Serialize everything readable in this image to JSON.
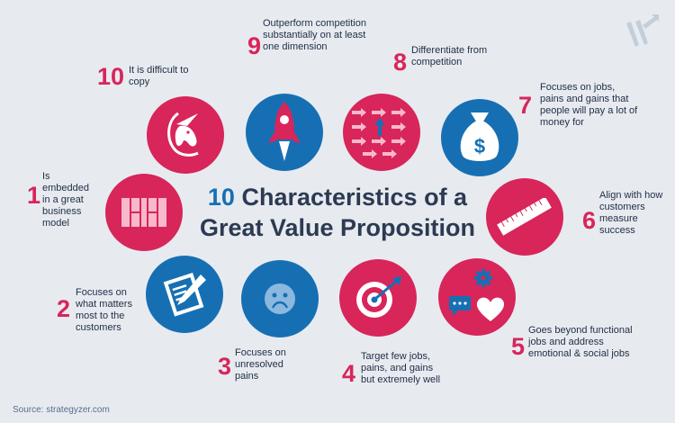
{
  "title": {
    "number": "10",
    "line1_rest": "Characteristics of a",
    "line2": "Great Value Proposition"
  },
  "items": [
    {
      "num": "1",
      "text": "Is embedded in a great business model",
      "color": "#d8255a",
      "icon": "business-model-grid-icon"
    },
    {
      "num": "2",
      "text": "Focuses on what matters most to the customers",
      "color": "#176fb3",
      "icon": "clipboard-pencil-icon"
    },
    {
      "num": "3",
      "text": "Focuses on unresolved pains",
      "color": "#176fb3",
      "icon": "sad-face-icon"
    },
    {
      "num": "4",
      "text": "Target few jobs, pains, and gains but extremely well",
      "color": "#d8255a",
      "icon": "target-arrow-icon"
    },
    {
      "num": "5",
      "text": "Goes beyond functional jobs and address emotional & social jobs",
      "color": "#d8255a",
      "icon": "gear-chat-heart-icon"
    },
    {
      "num": "6",
      "text": "Align with how customers measure success",
      "color": "#d8255a",
      "icon": "ruler-icon"
    },
    {
      "num": "7",
      "text": "Focuses on jobs, pains and gains that people will pay a lot of money for",
      "color": "#176fb3",
      "icon": "money-bag-icon"
    },
    {
      "num": "8",
      "text": "Differentiate from competition",
      "color": "#d8255a",
      "icon": "arrows-pattern-icon"
    },
    {
      "num": "9",
      "text": "Outperform competition substantially on at least one dimension",
      "color": "#176fb3",
      "icon": "rocket-icon"
    },
    {
      "num": "10",
      "text": "It is difficult to copy",
      "color": "#d8255a",
      "icon": "unicorn-icon"
    }
  ],
  "source": "Source: strategyzer.com",
  "logo_icon": "strategyzer-logo-icon"
}
